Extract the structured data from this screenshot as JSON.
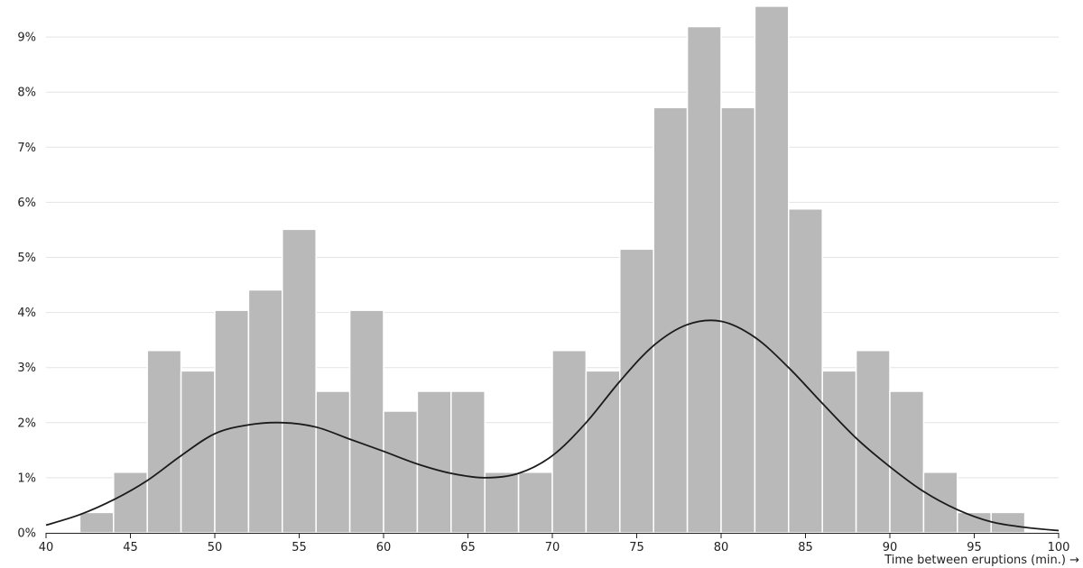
{
  "chart_data": {
    "type": "bar",
    "subtype": "histogram-with-density",
    "xlabel": "Time between eruptions (min.) →",
    "ylabel": "",
    "xlim": [
      40,
      100
    ],
    "ylim": [
      0,
      9.5
    ],
    "x_ticks": [
      40,
      45,
      50,
      55,
      60,
      65,
      70,
      75,
      80,
      85,
      90,
      95,
      100
    ],
    "y_ticks": [
      "0%",
      "1%",
      "2%",
      "3%",
      "4%",
      "5%",
      "6%",
      "7%",
      "8%",
      "9%"
    ],
    "y_tick_values": [
      0,
      1,
      2,
      3,
      4,
      5,
      6,
      7,
      8,
      9
    ],
    "grid": "horizontal",
    "bin_width": 2,
    "bins": [
      {
        "x0": 42,
        "x1": 44,
        "value": 0.37
      },
      {
        "x0": 44,
        "x1": 46,
        "value": 1.1
      },
      {
        "x0": 46,
        "x1": 48,
        "value": 3.31
      },
      {
        "x0": 48,
        "x1": 50,
        "value": 2.94
      },
      {
        "x0": 50,
        "x1": 52,
        "value": 4.04
      },
      {
        "x0": 52,
        "x1": 54,
        "value": 4.41
      },
      {
        "x0": 54,
        "x1": 56,
        "value": 5.51
      },
      {
        "x0": 56,
        "x1": 58,
        "value": 2.57
      },
      {
        "x0": 58,
        "x1": 60,
        "value": 4.04
      },
      {
        "x0": 60,
        "x1": 62,
        "value": 2.21
      },
      {
        "x0": 62,
        "x1": 64,
        "value": 2.57
      },
      {
        "x0": 64,
        "x1": 66,
        "value": 2.57
      },
      {
        "x0": 66,
        "x1": 68,
        "value": 1.1
      },
      {
        "x0": 68,
        "x1": 70,
        "value": 1.1
      },
      {
        "x0": 70,
        "x1": 72,
        "value": 3.31
      },
      {
        "x0": 72,
        "x1": 74,
        "value": 2.94
      },
      {
        "x0": 74,
        "x1": 76,
        "value": 5.15
      },
      {
        "x0": 76,
        "x1": 78,
        "value": 7.72
      },
      {
        "x0": 78,
        "x1": 80,
        "value": 9.19
      },
      {
        "x0": 80,
        "x1": 82,
        "value": 7.72
      },
      {
        "x0": 82,
        "x1": 84,
        "value": 9.56
      },
      {
        "x0": 84,
        "x1": 86,
        "value": 5.88
      },
      {
        "x0": 86,
        "x1": 88,
        "value": 2.94
      },
      {
        "x0": 88,
        "x1": 90,
        "value": 3.31
      },
      {
        "x0": 90,
        "x1": 92,
        "value": 2.57
      },
      {
        "x0": 92,
        "x1": 94,
        "value": 1.1
      },
      {
        "x0": 94,
        "x1": 96,
        "value": 0.37
      },
      {
        "x0": 96,
        "x1": 98,
        "value": 0.37
      }
    ],
    "density_curve": {
      "x": [
        40,
        42,
        44,
        46,
        48,
        50,
        52,
        54,
        56,
        58,
        60,
        62,
        64,
        66,
        68,
        70,
        72,
        74,
        76,
        78,
        80,
        82,
        84,
        86,
        88,
        90,
        92,
        94,
        96,
        98,
        100
      ],
      "y": [
        0.14,
        0.33,
        0.6,
        0.95,
        1.4,
        1.8,
        1.96,
        2.0,
        1.92,
        1.7,
        1.48,
        1.25,
        1.08,
        1.0,
        1.08,
        1.4,
        2.0,
        2.75,
        3.4,
        3.78,
        3.84,
        3.55,
        3.0,
        2.35,
        1.72,
        1.2,
        0.75,
        0.42,
        0.2,
        0.1,
        0.04
      ]
    }
  }
}
